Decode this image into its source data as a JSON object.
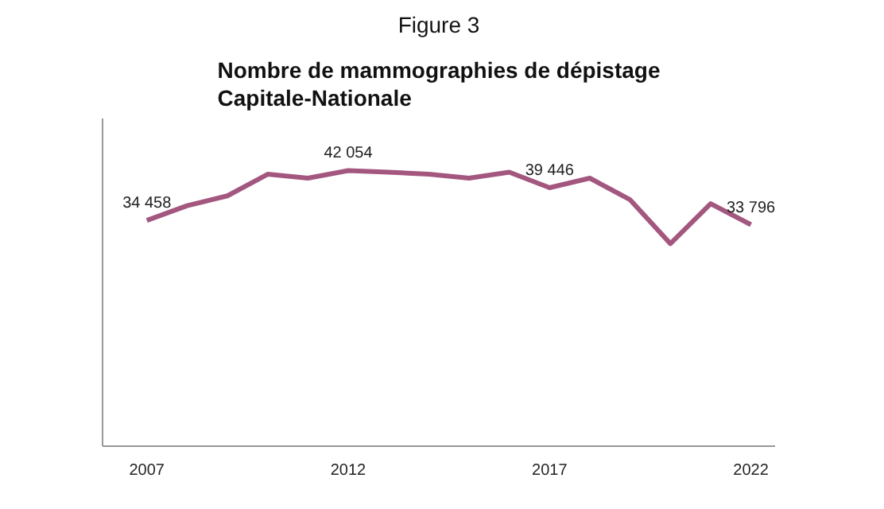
{
  "chart_data": {
    "type": "line",
    "subtitle": "Figure 3",
    "title": "Nombre de mammographies de dépistage\nCapitale-Nationale",
    "x": [
      2007,
      2008,
      2009,
      2010,
      2011,
      2012,
      2013,
      2014,
      2015,
      2016,
      2017,
      2018,
      2019,
      2020,
      2021,
      2022
    ],
    "series": [
      {
        "color": "#a3577f",
        "values": [
          34458,
          36700,
          38200,
          41500,
          40900,
          42054,
          41800,
          41500,
          40900,
          41800,
          39446,
          40900,
          37600,
          30900,
          37000,
          33796
        ],
        "value_labels": [
          "34 458",
          null,
          null,
          null,
          null,
          "42 054",
          null,
          null,
          null,
          null,
          "39 446",
          null,
          null,
          null,
          null,
          "33 796"
        ]
      }
    ],
    "xlim": [
      2005.9,
      2022.6
    ],
    "xticks": [
      2007,
      2012,
      2017,
      2022
    ],
    "ylim": [
      0,
      50000
    ],
    "tick_labels": "x",
    "grid": false,
    "marker": "none",
    "line_style": "solid"
  }
}
